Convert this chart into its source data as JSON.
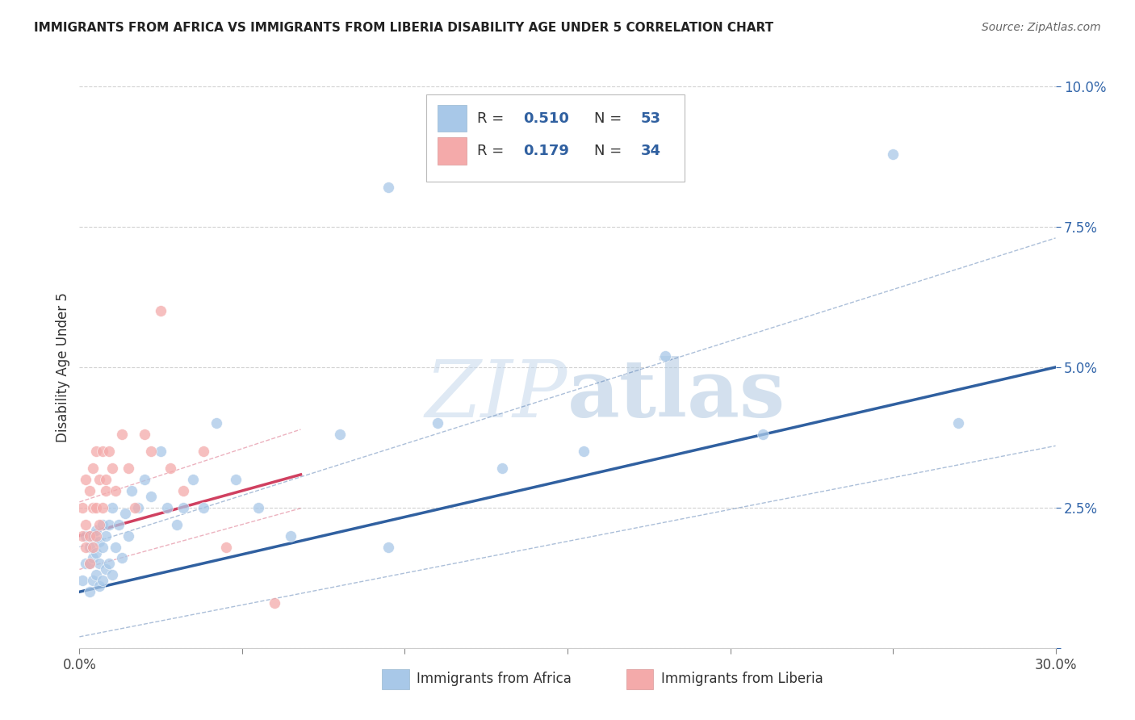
{
  "title": "IMMIGRANTS FROM AFRICA VS IMMIGRANTS FROM LIBERIA DISABILITY AGE UNDER 5 CORRELATION CHART",
  "source": "Source: ZipAtlas.com",
  "ylabel": "Disability Age Under 5",
  "xlim": [
    0.0,
    0.3
  ],
  "ylim": [
    0.0,
    0.1
  ],
  "color_africa": "#a8c8e8",
  "color_liberia": "#f4aaaa",
  "line_color_africa": "#3060a0",
  "line_color_liberia": "#d04060",
  "conf_color_africa": "#a0b8d8",
  "conf_color_liberia": "#e8a0a0",
  "watermark": "ZIPatlas",
  "figsize": [
    14.06,
    8.92
  ],
  "dpi": 100,
  "africa_x": [
    0.001,
    0.002,
    0.002,
    0.003,
    0.003,
    0.003,
    0.004,
    0.004,
    0.004,
    0.005,
    0.005,
    0.005,
    0.006,
    0.006,
    0.006,
    0.007,
    0.007,
    0.007,
    0.008,
    0.008,
    0.009,
    0.009,
    0.01,
    0.01,
    0.011,
    0.012,
    0.013,
    0.014,
    0.015,
    0.016,
    0.018,
    0.02,
    0.022,
    0.025,
    0.027,
    0.03,
    0.032,
    0.035,
    0.038,
    0.042,
    0.048,
    0.055,
    0.065,
    0.08,
    0.095,
    0.11,
    0.13,
    0.155,
    0.18,
    0.21,
    0.095,
    0.25,
    0.27
  ],
  "africa_y": [
    0.012,
    0.015,
    0.02,
    0.01,
    0.015,
    0.018,
    0.012,
    0.016,
    0.02,
    0.013,
    0.017,
    0.021,
    0.011,
    0.015,
    0.019,
    0.012,
    0.018,
    0.022,
    0.014,
    0.02,
    0.015,
    0.022,
    0.013,
    0.025,
    0.018,
    0.022,
    0.016,
    0.024,
    0.02,
    0.028,
    0.025,
    0.03,
    0.027,
    0.035,
    0.025,
    0.022,
    0.025,
    0.03,
    0.025,
    0.04,
    0.03,
    0.025,
    0.02,
    0.038,
    0.018,
    0.04,
    0.032,
    0.035,
    0.052,
    0.038,
    0.082,
    0.088,
    0.04
  ],
  "liberia_x": [
    0.001,
    0.001,
    0.002,
    0.002,
    0.002,
    0.003,
    0.003,
    0.003,
    0.004,
    0.004,
    0.004,
    0.005,
    0.005,
    0.005,
    0.006,
    0.006,
    0.007,
    0.007,
    0.008,
    0.008,
    0.009,
    0.01,
    0.011,
    0.013,
    0.015,
    0.017,
    0.02,
    0.022,
    0.025,
    0.028,
    0.032,
    0.038,
    0.045,
    0.06
  ],
  "liberia_y": [
    0.02,
    0.025,
    0.018,
    0.022,
    0.03,
    0.015,
    0.02,
    0.028,
    0.018,
    0.025,
    0.032,
    0.02,
    0.025,
    0.035,
    0.022,
    0.03,
    0.025,
    0.035,
    0.028,
    0.03,
    0.035,
    0.032,
    0.028,
    0.038,
    0.032,
    0.025,
    0.038,
    0.035,
    0.06,
    0.032,
    0.028,
    0.035,
    0.018,
    0.008
  ]
}
